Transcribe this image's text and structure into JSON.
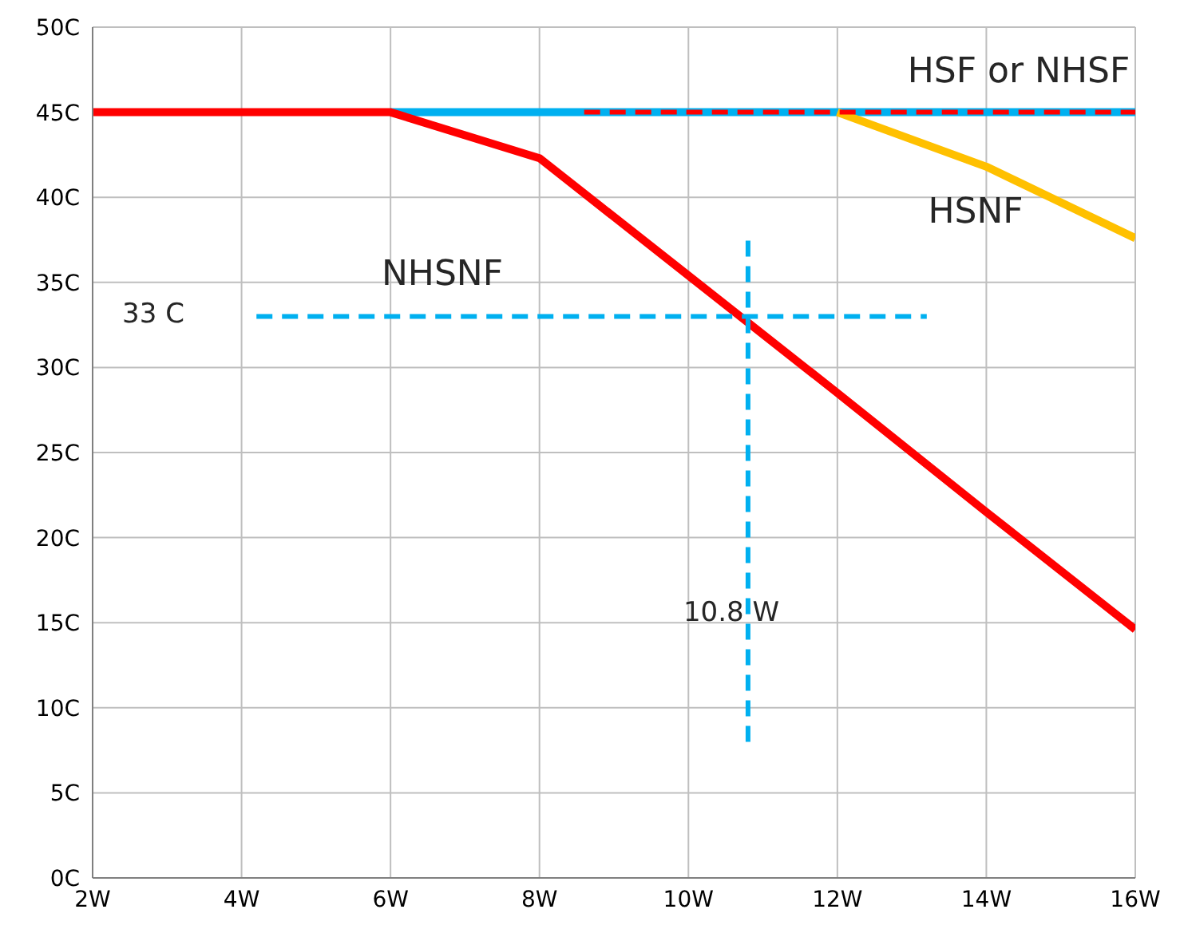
{
  "chart_data": {
    "type": "line",
    "xlim": [
      2,
      16
    ],
    "xticks": [
      {
        "value": 2,
        "label": "2W"
      },
      {
        "value": 4,
        "label": "4W"
      },
      {
        "value": 6,
        "label": "6W"
      },
      {
        "value": 8,
        "label": "8W"
      },
      {
        "value": 10,
        "label": "10W"
      },
      {
        "value": 12,
        "label": "12W"
      },
      {
        "value": 14,
        "label": "14W"
      },
      {
        "value": 16,
        "label": "16W"
      }
    ],
    "ylim": [
      0,
      50
    ],
    "yticks": [
      {
        "value": 0,
        "label": "0C"
      },
      {
        "value": 5,
        "label": "5C"
      },
      {
        "value": 10,
        "label": "10C"
      },
      {
        "value": 15,
        "label": "15C"
      },
      {
        "value": 20,
        "label": "20C"
      },
      {
        "value": 25,
        "label": "25C"
      },
      {
        "value": 30,
        "label": "30C"
      },
      {
        "value": 35,
        "label": "35C"
      },
      {
        "value": 40,
        "label": "40C"
      },
      {
        "value": 45,
        "label": "45C"
      },
      {
        "value": 50,
        "label": "50C"
      }
    ],
    "grid": true,
    "marker": "none",
    "series": [
      {
        "color": "#00b0f0",
        "x": [
          6,
          16
        ],
        "values": [
          45,
          45
        ],
        "line_style": "solid"
      },
      {
        "color": "#ffc000",
        "x": [
          12,
          14,
          16
        ],
        "values": [
          45,
          41.8,
          37.6
        ],
        "line_style": "solid"
      },
      {
        "color": "#ff0000",
        "x": [
          2,
          6,
          8,
          10,
          12,
          14,
          16
        ],
        "values": [
          45,
          45,
          42.3,
          35.4,
          28.5,
          21.5,
          14.6
        ],
        "line_style": "solid"
      },
      {
        "color": "#ff0000",
        "x": [
          8.6,
          16
        ],
        "values": [
          45,
          45
        ],
        "line_style": "dashed"
      },
      {
        "color": "#00b0f0",
        "x": [
          4.2,
          13.2
        ],
        "values": [
          33,
          33
        ],
        "line_style": "dashed"
      },
      {
        "color": "#00b0f0",
        "x": [
          10.8,
          10.8
        ],
        "values": [
          8,
          37.5
        ],
        "line_style": "dashed"
      }
    ],
    "annotations": [
      "HSF or NHSF",
      "HSNF",
      "NHSNF",
      "33 C",
      "10.8 W"
    ]
  }
}
